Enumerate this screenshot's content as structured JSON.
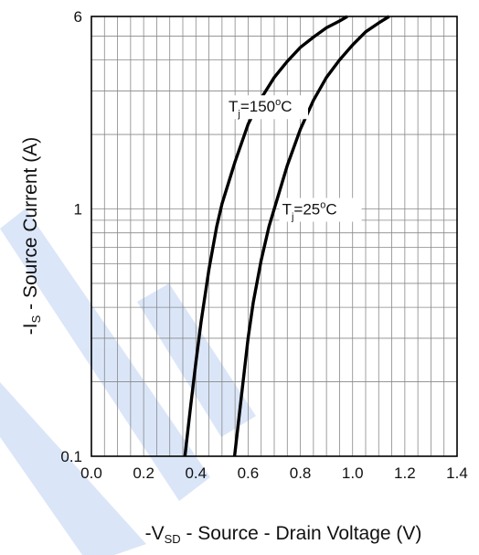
{
  "chart_data": {
    "type": "line",
    "xlabel": {
      "prefix": "-V",
      "sub": "SD",
      "rest": " - Source - Drain Voltage (V)"
    },
    "ylabel": {
      "prefix": "-I",
      "sub": "S",
      "rest": " - Source Current (A)"
    },
    "xlim": [
      0.0,
      1.4
    ],
    "ylim": [
      0.1,
      6
    ],
    "yscale": "log",
    "grid": true,
    "x_ticks": [
      "0.0",
      "0.2",
      "0.4",
      "0.6",
      "0.8",
      "1.0",
      "1.2",
      "1.4"
    ],
    "y_ticks": [
      {
        "value": 0.1,
        "label": "0.1"
      },
      {
        "value": 1,
        "label": "1"
      },
      {
        "value": 6,
        "label": "6"
      }
    ],
    "series": [
      {
        "name": "Tj=150°C",
        "label": {
          "base": "T",
          "sub": "j",
          "mid": "=150",
          "sup": "o",
          "end": "C"
        },
        "label_at": {
          "x": 0.525,
          "y": 2.6
        },
        "color": "#000000",
        "points": [
          [
            0.358,
            0.1
          ],
          [
            0.38,
            0.16
          ],
          [
            0.4,
            0.24
          ],
          [
            0.42,
            0.35
          ],
          [
            0.45,
            0.57
          ],
          [
            0.48,
            0.85
          ],
          [
            0.5,
            1.05
          ],
          [
            0.55,
            1.55
          ],
          [
            0.6,
            2.2
          ],
          [
            0.65,
            2.8
          ],
          [
            0.7,
            3.4
          ],
          [
            0.75,
            3.95
          ],
          [
            0.8,
            4.5
          ],
          [
            0.85,
            4.95
          ],
          [
            0.9,
            5.4
          ],
          [
            0.95,
            5.75
          ],
          [
            0.98,
            6.0
          ]
        ]
      },
      {
        "name": "Tj=25°C",
        "label": {
          "base": "T",
          "sub": "j",
          "mid": "=25",
          "sup": "o",
          "end": "C"
        },
        "label_at": {
          "x": 0.73,
          "y": 1.0
        },
        "color": "#000000",
        "points": [
          [
            0.548,
            0.1
          ],
          [
            0.57,
            0.16
          ],
          [
            0.6,
            0.3
          ],
          [
            0.62,
            0.42
          ],
          [
            0.65,
            0.62
          ],
          [
            0.68,
            0.85
          ],
          [
            0.7,
            1.0
          ],
          [
            0.75,
            1.5
          ],
          [
            0.8,
            2.1
          ],
          [
            0.85,
            2.75
          ],
          [
            0.9,
            3.4
          ],
          [
            0.95,
            4.0
          ],
          [
            1.0,
            4.6
          ],
          [
            1.05,
            5.2
          ],
          [
            1.1,
            5.65
          ],
          [
            1.14,
            6.0
          ]
        ]
      }
    ],
    "watermark_color": "#5b8fe0"
  }
}
